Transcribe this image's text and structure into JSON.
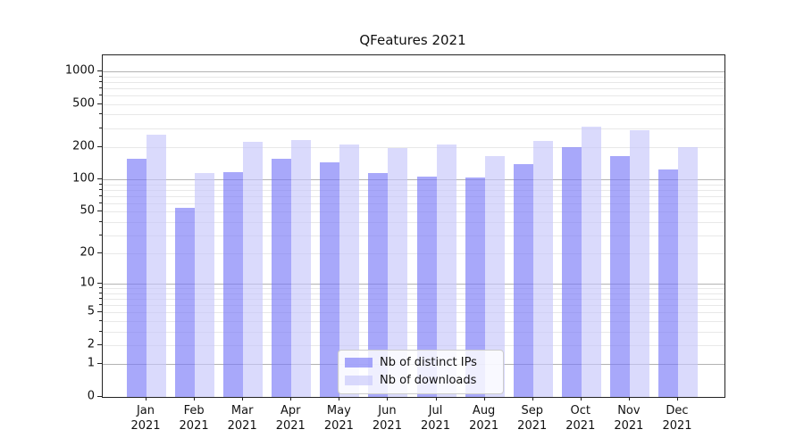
{
  "chart_data": {
    "type": "bar",
    "title": "QFeatures 2021",
    "xlabel": "",
    "ylabel": "",
    "categories": [
      "Jan",
      "Feb",
      "Mar",
      "Apr",
      "May",
      "Jun",
      "Jul",
      "Aug",
      "Sep",
      "Oct",
      "Nov",
      "Dec"
    ],
    "category_year": "2021",
    "series": [
      {
        "name": "Nb of distinct IPs",
        "color": "rgba(122,122,247,0.65)",
        "values": [
          156,
          54,
          117,
          155,
          144,
          114,
          107,
          104,
          139,
          199,
          166,
          124
        ]
      },
      {
        "name": "Nb of downloads",
        "color": "rgba(198,198,250,0.65)",
        "values": [
          262,
          115,
          222,
          232,
          212,
          196,
          210,
          165,
          229,
          310,
          287,
          201
        ]
      }
    ],
    "yaxis": {
      "scale": "log10(value+1)",
      "ylim": [
        0,
        1407
      ],
      "tick_labels": [
        "1000",
        "500",
        "200",
        "100",
        "50",
        "20",
        "10",
        "5",
        "2",
        "1",
        "0"
      ],
      "tick_values": [
        1000,
        500,
        200,
        100,
        50,
        20,
        10,
        5,
        2,
        1,
        0
      ],
      "major_grid_values": [
        1,
        10,
        100,
        1000
      ],
      "minor_grid_values": [
        2,
        3,
        4,
        5,
        6,
        7,
        8,
        9,
        20,
        30,
        40,
        50,
        60,
        70,
        80,
        90,
        200,
        300,
        400,
        500,
        600,
        700,
        800,
        900
      ]
    },
    "legend": {
      "position": "lower-center"
    },
    "grid": true,
    "colors": {
      "major_grid": "#b3b3b3",
      "minor_grid": "#e8e8e8",
      "spine": "#222222",
      "background": "#ffffff"
    }
  }
}
